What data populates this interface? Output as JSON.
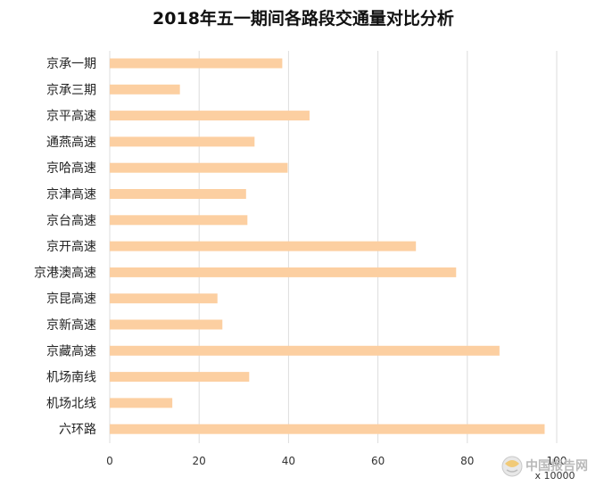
{
  "chart_data": {
    "type": "bar",
    "orientation": "horizontal",
    "title": "2018年五一期间各路段交通量对比分析",
    "categories": [
      "京承一期",
      "京承三期",
      "京平高速",
      "通燕高速",
      "京哈高速",
      "京津高速",
      "京台高速",
      "京开高速",
      "京港澳高速",
      "京昆高速",
      "京新高速",
      "京藏高速",
      "机场南线",
      "机场北线",
      "六环路"
    ],
    "values": [
      38.6,
      15.7,
      44.7,
      32.4,
      39.8,
      30.5,
      30.8,
      68.5,
      77.5,
      24.1,
      25.2,
      87.2,
      31.2,
      14.0,
      97.3
    ],
    "xlim": [
      0,
      100
    ],
    "xticks": [
      0,
      20,
      40,
      60,
      80,
      100
    ],
    "unit_label": "x 10000",
    "grid": true,
    "bar_color": "#fccfa1"
  },
  "watermark": {
    "text": "中国报告网",
    "icon": "globe-logo-icon"
  }
}
